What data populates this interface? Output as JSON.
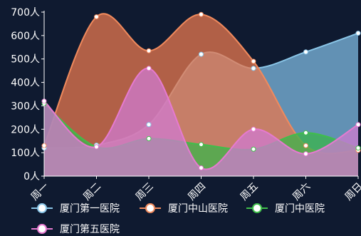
{
  "chart_data": {
    "type": "area",
    "categories": [
      "周一",
      "周二",
      "周三",
      "周四",
      "周五",
      "周六",
      "周日"
    ],
    "y_unit": "人",
    "ylim": [
      0,
      700
    ],
    "y_ticks": [
      "0人",
      "100人",
      "200人",
      "300人",
      "400人",
      "500人",
      "600人",
      "700人"
    ],
    "smooth": true,
    "grid": false,
    "legend_position": "bottom-left",
    "series": [
      {
        "name": "厦门第一医院",
        "color": "#8ac6e8",
        "fill": "#7fb9e0",
        "values": [
          120,
          132,
          220,
          520,
          460,
          530,
          610
        ]
      },
      {
        "name": "厦门中山医院",
        "color": "#f08a5d",
        "fill": "#e8784f",
        "values": [
          130,
          680,
          535,
          690,
          490,
          130,
          110
        ]
      },
      {
        "name": "厦门中医院",
        "color": "#3fbf4a",
        "fill": "#3ab54a",
        "values": [
          310,
          125,
          160,
          135,
          115,
          185,
          120
        ]
      },
      {
        "name": "厦门第五医院",
        "color": "#e67ad0",
        "fill": "#d07bd0",
        "values": [
          320,
          125,
          460,
          35,
          200,
          95,
          220
        ]
      }
    ]
  }
}
